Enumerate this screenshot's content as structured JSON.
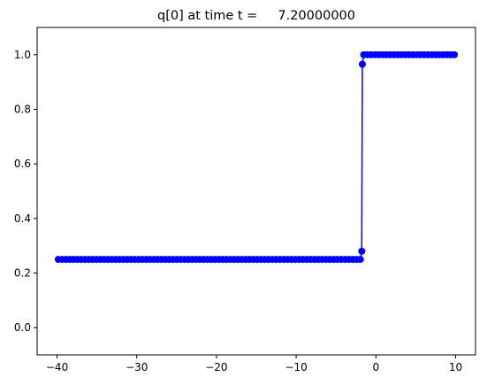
{
  "chart_data": {
    "type": "line",
    "title": "q[0] at time t =     7.20000000",
    "xlabel": "",
    "ylabel": "",
    "xlim": [
      -42.5,
      12.5
    ],
    "ylim": [
      -0.1,
      1.1
    ],
    "grid": false,
    "x_ticks": [
      -40,
      -30,
      -20,
      -10,
      0,
      10
    ],
    "x_tick_labels": [
      "−40",
      "−30",
      "−20",
      "−10",
      "0",
      "10"
    ],
    "y_ticks": [
      0.0,
      0.2,
      0.4,
      0.6,
      0.8,
      1.0
    ],
    "y_tick_labels": [
      "0.0",
      "0.2",
      "0.4",
      "0.6",
      "0.8",
      "1.0"
    ],
    "series": [
      {
        "color": "#0000ff",
        "marker": "circle",
        "segments": [
          {
            "x_start": -39.85,
            "x_end": -1.95,
            "count": 80,
            "y": 0.25
          },
          {
            "x": -1.775,
            "y": 0.28
          },
          {
            "x": -1.7,
            "y": 0.965
          },
          {
            "x_start": -1.525,
            "x_end": 9.85,
            "count": 25,
            "y": 1.0
          }
        ]
      }
    ]
  }
}
